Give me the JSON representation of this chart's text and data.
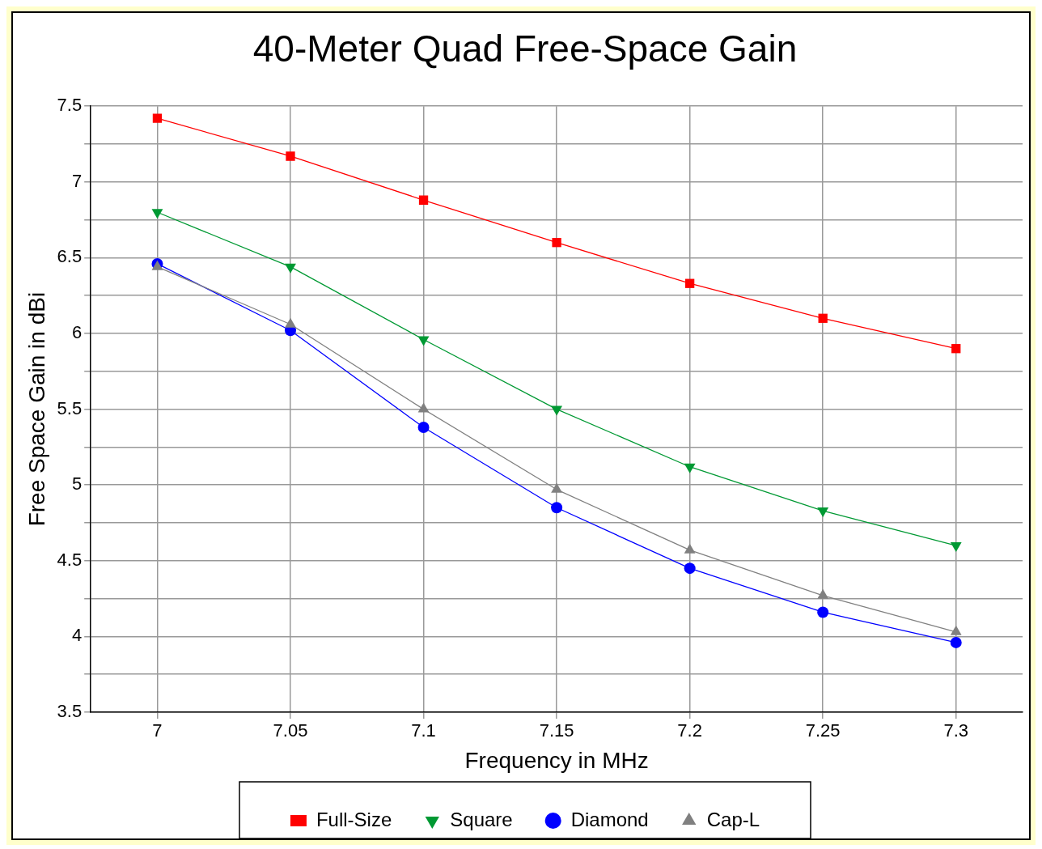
{
  "chart_data": {
    "type": "line",
    "title": "40-Meter Quad Free-Space Gain",
    "xlabel": "Frequency in MHz",
    "ylabel": "Free Space Gain in dBi",
    "x": [
      7,
      7.05,
      7.1,
      7.15,
      7.2,
      7.25,
      7.3
    ],
    "series": [
      {
        "name": "Full-Size",
        "color": "#ff0000",
        "marker": "square",
        "values": [
          7.42,
          7.17,
          6.88,
          6.6,
          6.33,
          6.1,
          5.9
        ]
      },
      {
        "name": "Square",
        "color": "#009933",
        "marker": "triangle-down",
        "values": [
          6.8,
          6.44,
          5.96,
          5.5,
          5.12,
          4.83,
          4.6
        ]
      },
      {
        "name": "Diamond",
        "color": "#0000ff",
        "marker": "circle",
        "values": [
          6.46,
          6.02,
          5.38,
          4.85,
          4.45,
          4.16,
          3.96
        ]
      },
      {
        "name": "Cap-L",
        "color": "#808080",
        "marker": "triangle",
        "values": [
          6.44,
          6.06,
          5.5,
          4.97,
          4.57,
          4.27,
          4.03
        ]
      }
    ],
    "xlim": [
      6.975,
      7.325
    ],
    "xticks": [
      7,
      7.05,
      7.1,
      7.15,
      7.2,
      7.25,
      7.3
    ],
    "ylim": [
      3.5,
      7.5
    ],
    "yticks": [
      3.5,
      {
        "value": 3.75,
        "label": null
      },
      4,
      {
        "value": 4.25,
        "label": null
      },
      4.5,
      {
        "value": 4.75,
        "label": null
      },
      5,
      {
        "value": 5.25,
        "label": null
      },
      5.5,
      {
        "value": 5.75,
        "label": null
      },
      6,
      {
        "value": 6.25,
        "label": null
      },
      6.5,
      {
        "value": 6.75,
        "label": null
      },
      7,
      {
        "value": 7.25,
        "label": null
      },
      7.5
    ],
    "grid": true,
    "legend": "bottom",
    "line_style": "solid"
  }
}
